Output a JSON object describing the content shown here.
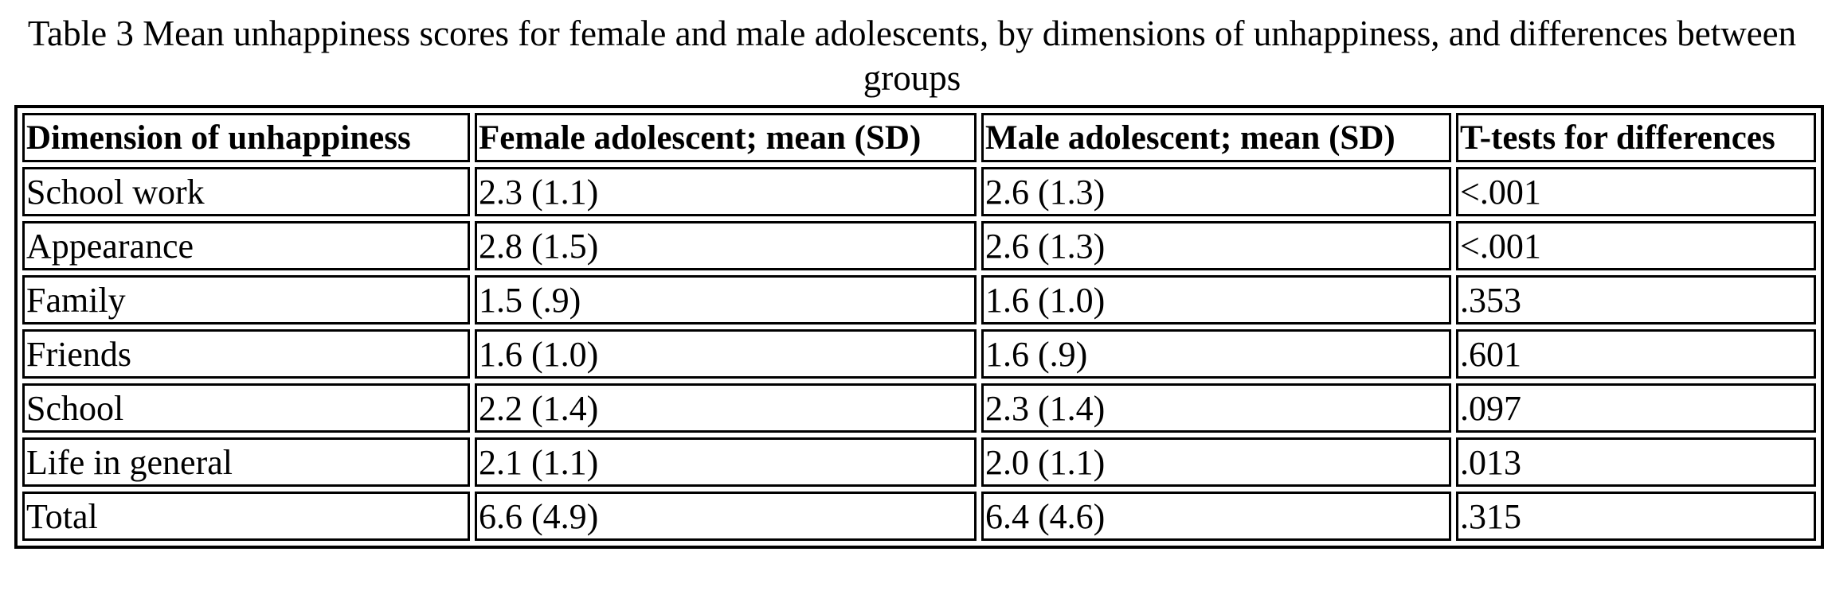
{
  "caption": "Table 3 Mean unhappiness scores for female and male adolescents, by dimensions of unhappiness, and differences between groups",
  "table": {
    "headers": [
      "Dimension of unhappiness",
      "Female adolescent; mean (SD)",
      "Male adolescent; mean (SD)",
      "T-tests for differences"
    ],
    "rows": [
      [
        "School work",
        "2.3 (1.1)",
        "2.6 (1.3)",
        "<.001"
      ],
      [
        "Appearance",
        "2.8 (1.5)",
        "2.6 (1.3)",
        "<.001"
      ],
      [
        "Family",
        "1.5 (.9)",
        "1.6 (1.0)",
        ".353"
      ],
      [
        "Friends",
        "1.6 (1.0)",
        "1.6 (.9)",
        ".601"
      ],
      [
        "School",
        "2.2 (1.4)",
        "2.3 (1.4)",
        ".097"
      ],
      [
        "Life in general",
        "2.1 (1.1)",
        "2.0 (1.1)",
        ".013"
      ],
      [
        "Total",
        "6.6 (4.9)",
        "6.4 (4.6)",
        ".315"
      ]
    ]
  }
}
